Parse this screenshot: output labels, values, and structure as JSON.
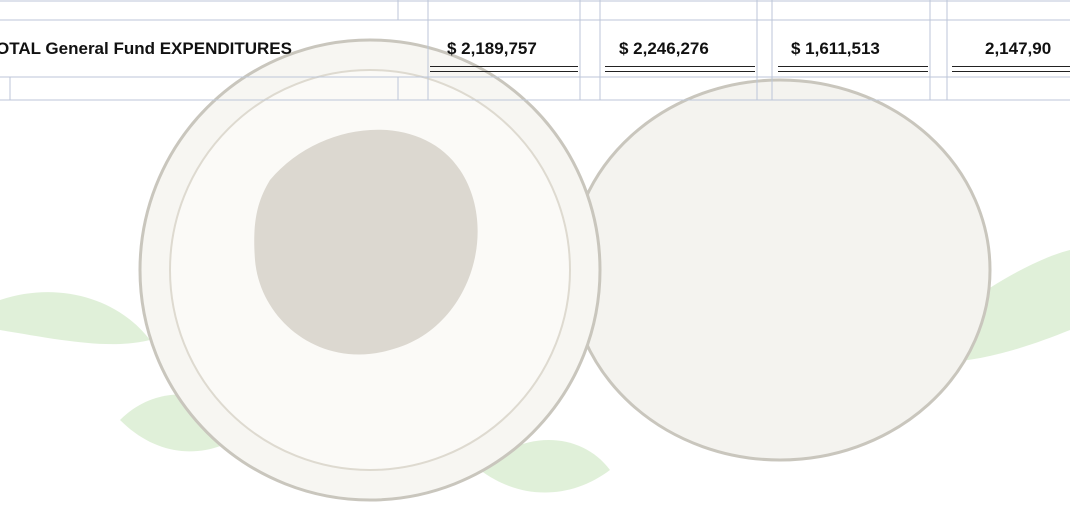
{
  "table": {
    "rows": [
      [
        "OTAL General Fund EXPENDITURES",
        "$ 2,189,757",
        "$ 2,246,276",
        "$ 1,611,513",
        "2,147,90"
      ]
    ]
  }
}
